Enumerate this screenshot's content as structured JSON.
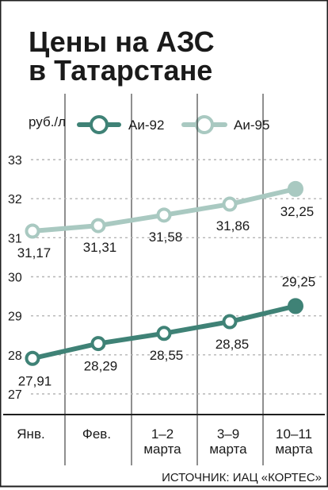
{
  "title_lines": [
    "Цены на АЗС",
    "в Татарстане"
  ],
  "unit": "руб./л",
  "source": "ИСТОЧНИК: ИАЦ «КОРТЕС»",
  "colors": {
    "frame": "#1f1f1f",
    "text": "#1a1a1a",
    "grid": "#b5b5b5",
    "ai92": "#3f8276",
    "ai95": "#a9c9c1",
    "point_center": "#ffffff",
    "background": "#ffffff"
  },
  "chart_data": {
    "type": "line",
    "title": "Цены на АЗС в Татарстане",
    "xlabel": "",
    "ylabel": "руб./л",
    "categories": [
      [
        "Янв."
      ],
      [
        "Фев."
      ],
      [
        "1–2",
        "марта"
      ],
      [
        "3–9",
        "марта"
      ],
      [
        "10–11",
        "марта"
      ]
    ],
    "y_ticks": [
      27,
      28,
      29,
      30,
      31,
      32,
      33
    ],
    "ylim": [
      27,
      33
    ],
    "grid": true,
    "legend_position": "top",
    "series": [
      {
        "name": "Аи-92",
        "color_key": "ai92",
        "values": [
          27.91,
          28.29,
          28.55,
          28.85,
          29.25
        ],
        "labels": [
          "27,91",
          "28,29",
          "28,55",
          "28,85",
          "29,25"
        ]
      },
      {
        "name": "Аи-95",
        "color_key": "ai95",
        "values": [
          31.17,
          31.31,
          31.58,
          31.86,
          32.25
        ],
        "labels": [
          "31,17",
          "31,31",
          "31,58",
          "31,86",
          "32,25"
        ]
      }
    ]
  }
}
